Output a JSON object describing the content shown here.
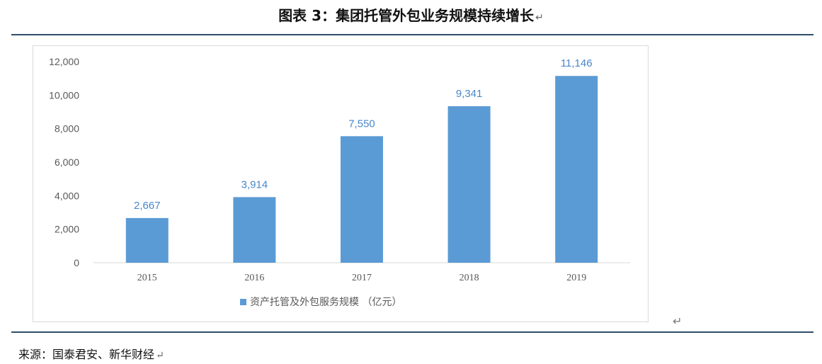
{
  "figure": {
    "title": "图表 3：集团托管外包业务规模持续增长",
    "return_mark": "↵",
    "source": "来源：国泰君安、新华财经"
  },
  "chart_data": {
    "type": "bar",
    "categories": [
      "2015",
      "2016",
      "2017",
      "2018",
      "2019"
    ],
    "series": [
      {
        "name": "资产托管及外包服务规模 （亿元）",
        "values": [
          2667,
          3914,
          7550,
          9341,
          11146
        ],
        "color": "#5b9bd5"
      }
    ],
    "data_labels": [
      "2,667",
      "3,914",
      "7,550",
      "9,341",
      "11,146"
    ],
    "ylim": [
      0,
      12000
    ],
    "yticks": [
      0,
      2000,
      4000,
      6000,
      8000,
      10000,
      12000
    ],
    "ytick_labels": [
      "0",
      "2,000",
      "4,000",
      "6,000",
      "8,000",
      "10,000",
      "12,000"
    ],
    "grid": false,
    "legend_position": "bottom",
    "label_color": "#4a86c8",
    "axis_color": "#d9d9d9"
  }
}
